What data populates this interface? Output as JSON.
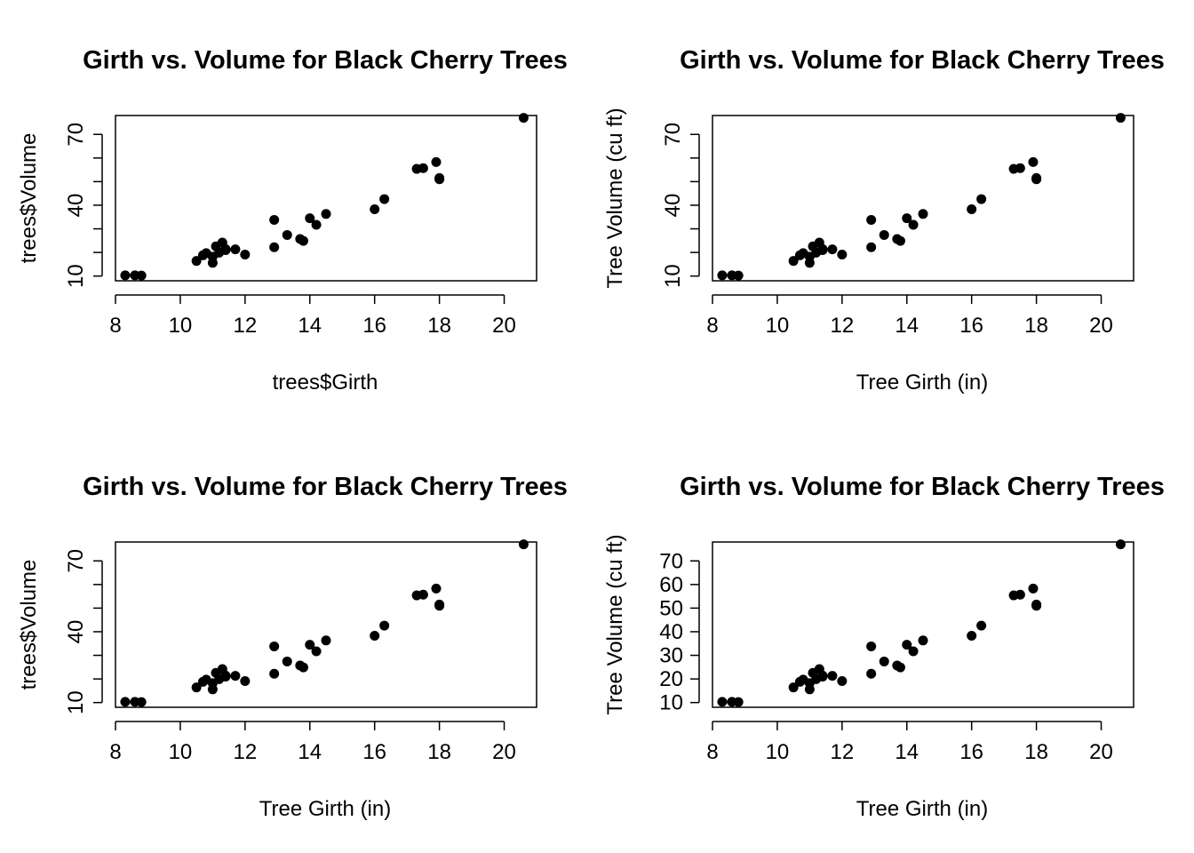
{
  "chart_data": [
    {
      "type": "scatter",
      "title": "Girth vs. Volume for Black Cherry Trees",
      "xlabel": "trees$Girth",
      "ylabel": "trees$Volume",
      "xlim": [
        8,
        21
      ],
      "ylim": [
        8,
        78
      ],
      "xticks": [
        8,
        10,
        12,
        14,
        16,
        18,
        20
      ],
      "yticks": [
        10,
        20,
        30,
        40,
        50,
        60,
        70
      ],
      "ytick_labels": [
        "10",
        "",
        "",
        "40",
        "",
        "",
        "70"
      ],
      "ytick_rotated": true,
      "grid": false,
      "legend": "none"
    },
    {
      "type": "scatter",
      "title": "Girth vs. Volume for Black Cherry Trees",
      "xlabel": "Tree Girth (in)",
      "ylabel": "Tree Volume (cu ft)",
      "xlim": [
        8,
        21
      ],
      "ylim": [
        8,
        78
      ],
      "xticks": [
        8,
        10,
        12,
        14,
        16,
        18,
        20
      ],
      "yticks": [
        10,
        20,
        30,
        40,
        50,
        60,
        70
      ],
      "ytick_labels": [
        "10",
        "",
        "",
        "40",
        "",
        "",
        "70"
      ],
      "ytick_rotated": true,
      "grid": false,
      "legend": "none"
    },
    {
      "type": "scatter",
      "title": "Girth vs. Volume for Black Cherry Trees",
      "xlabel": "Tree Girth (in)",
      "ylabel": "trees$Volume",
      "xlim": [
        8,
        21
      ],
      "ylim": [
        8,
        78
      ],
      "xticks": [
        8,
        10,
        12,
        14,
        16,
        18,
        20
      ],
      "yticks": [
        10,
        20,
        30,
        40,
        50,
        60,
        70
      ],
      "ytick_labels": [
        "10",
        "",
        "",
        "40",
        "",
        "",
        "70"
      ],
      "ytick_rotated": true,
      "grid": false,
      "legend": "none"
    },
    {
      "type": "scatter",
      "title": "Girth vs. Volume for Black Cherry Trees",
      "xlabel": "Tree Girth (in)",
      "ylabel": "Tree Volume (cu ft)",
      "xlim": [
        8,
        21
      ],
      "ylim": [
        8,
        78
      ],
      "xticks": [
        8,
        10,
        12,
        14,
        16,
        18,
        20
      ],
      "yticks": [
        10,
        20,
        30,
        40,
        50,
        60,
        70
      ],
      "ytick_labels": [
        "10",
        "20",
        "30",
        "40",
        "50",
        "60",
        "70"
      ],
      "ytick_rotated": false,
      "grid": false,
      "legend": "none"
    }
  ],
  "points": {
    "x": [
      8.3,
      8.6,
      8.8,
      10.5,
      10.7,
      10.8,
      11.0,
      11.0,
      11.1,
      11.2,
      11.3,
      11.4,
      11.4,
      11.7,
      12.0,
      12.9,
      12.9,
      13.3,
      13.7,
      13.8,
      14.0,
      14.2,
      14.5,
      16.0,
      16.3,
      17.3,
      17.5,
      17.9,
      18.0,
      18.0,
      20.6
    ],
    "y": [
      10.3,
      10.3,
      10.2,
      16.4,
      18.8,
      19.7,
      15.6,
      18.2,
      22.6,
      19.9,
      24.2,
      21.0,
      21.4,
      21.3,
      19.1,
      22.2,
      33.8,
      27.4,
      25.7,
      24.9,
      34.5,
      31.7,
      36.3,
      38.3,
      42.6,
      55.4,
      55.7,
      58.3,
      51.5,
      51.0,
      77.0
    ]
  }
}
